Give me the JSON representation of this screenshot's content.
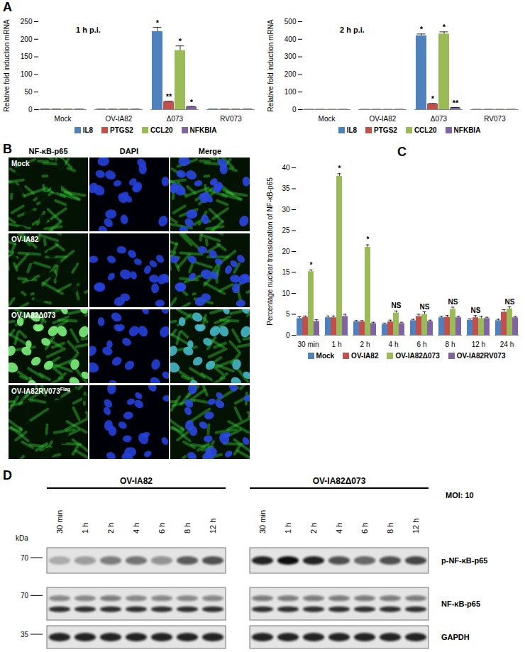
{
  "chart_data": [
    {
      "type": "bar",
      "panel": "A",
      "title": "1 h p.i.",
      "ylabel": "Relative fold induction mRNA",
      "categories": [
        "Mock",
        "OV-IA82",
        "Δ073",
        "RV073"
      ],
      "series": [
        {
          "name": "IL8",
          "color": "#4f81bd",
          "values": [
            1,
            1,
            222,
            1
          ],
          "errors": [
            0.2,
            0.2,
            12,
            0.2
          ],
          "significance": [
            null,
            null,
            "*",
            null
          ]
        },
        {
          "name": "PTGS2",
          "color": "#c0504d",
          "values": [
            1,
            1,
            22,
            1
          ],
          "errors": [
            0.2,
            0.2,
            2,
            0.2
          ],
          "significance": [
            null,
            null,
            "**",
            null
          ]
        },
        {
          "name": "CCL20",
          "color": "#9bbb59",
          "values": [
            1,
            1,
            168,
            1
          ],
          "errors": [
            0.2,
            0.2,
            13,
            0.2
          ],
          "significance": [
            null,
            null,
            "*",
            null
          ]
        },
        {
          "name": "NFKBIA",
          "color": "#8064a2",
          "values": [
            1,
            1,
            8,
            1
          ],
          "errors": [
            0.2,
            0.2,
            1,
            0.2
          ],
          "significance": [
            null,
            null,
            "*",
            null
          ]
        }
      ],
      "ylim": [
        0,
        250
      ],
      "yticks": [
        0,
        50,
        100,
        150,
        200,
        250
      ],
      "grid": false,
      "legend": "bottom"
    },
    {
      "type": "bar",
      "title": "2 h p.i.",
      "ylabel": "Relative fold induction mRNA",
      "categories": [
        "Mock",
        "OV-IA82",
        "Δ073",
        "RV073"
      ],
      "series": [
        {
          "name": "IL8",
          "color": "#4f81bd",
          "values": [
            1,
            1,
            420,
            1
          ],
          "errors": [
            0.3,
            0.3,
            10,
            0.3
          ],
          "significance": [
            null,
            null,
            "*",
            null
          ]
        },
        {
          "name": "PTGS2",
          "color": "#c0504d",
          "values": [
            1,
            1,
            32,
            1
          ],
          "errors": [
            0.3,
            0.3,
            3,
            0.3
          ],
          "significance": [
            null,
            null,
            "*",
            null
          ]
        },
        {
          "name": "CCL20",
          "color": "#9bbb59",
          "values": [
            1,
            1,
            430,
            1
          ],
          "errors": [
            0.3,
            0.3,
            12,
            0.3
          ],
          "significance": [
            null,
            null,
            "*",
            null
          ]
        },
        {
          "name": "NFKBIA",
          "color": "#8064a2",
          "values": [
            1,
            1,
            10,
            1
          ],
          "errors": [
            0.3,
            0.3,
            2,
            0.3
          ],
          "significance": [
            null,
            null,
            "**",
            null
          ]
        }
      ],
      "ylim": [
        0,
        500
      ],
      "yticks": [
        0,
        100,
        200,
        300,
        400,
        500
      ],
      "grid": false,
      "legend": "bottom"
    },
    {
      "type": "bar",
      "panel": "C",
      "ylabel": "Percentage nuclear translocation of NF-κB-p65",
      "categories": [
        "30 min",
        "1 h",
        "2 h",
        "4 h",
        "6 h",
        "8 h",
        "12 h",
        "24 h"
      ],
      "series": [
        {
          "name": "Mock",
          "color": "#4f81bd",
          "values": [
            4,
            4.2,
            3.2,
            2.6,
            3.5,
            4.2,
            3.6,
            3.5
          ],
          "errors": [
            0.4,
            0.4,
            0.3,
            0.3,
            0.3,
            0.3,
            0.3,
            0.3
          ]
        },
        {
          "name": "OV-IA82",
          "color": "#c0504d",
          "values": [
            4.3,
            4.2,
            3.2,
            3.2,
            4.5,
            4.3,
            4.2,
            5.5
          ],
          "errors": [
            0.3,
            0.4,
            0.3,
            0.4,
            0.5,
            0.4,
            0.5,
            0.6
          ]
        },
        {
          "name": "OV-IA82Δ073",
          "color": "#9bbb59",
          "values": [
            15.2,
            38,
            21,
            5.3,
            5,
            6.2,
            4,
            6.3
          ],
          "errors": [
            0.4,
            0.6,
            0.6,
            0.5,
            0.6,
            0.5,
            0.5,
            0.5
          ]
        },
        {
          "name": "OV-IA82RV073",
          "color": "#8064a2",
          "values": [
            3.3,
            4.5,
            2.8,
            2.8,
            3.3,
            4.2,
            4,
            4.2
          ],
          "errors": [
            0.4,
            0.5,
            0.3,
            0.3,
            0.3,
            0.3,
            0.3,
            0.3
          ]
        }
      ],
      "annotations": [
        "*",
        "*",
        "*",
        "NS",
        "NS",
        "NS",
        "NS",
        "NS"
      ],
      "ylim": [
        0,
        40
      ],
      "yticks": [
        0,
        5,
        10,
        15,
        20,
        25,
        30,
        35,
        40
      ],
      "grid": false,
      "legend": "bottom"
    }
  ],
  "images": {
    "panel": "B",
    "columns": [
      "NF-κB-p65",
      "DAPI",
      "Merge"
    ],
    "rows": [
      {
        "text": "Mock"
      },
      {
        "text": "OV-IA82"
      },
      {
        "text": "OV-IA82Δ073"
      },
      {
        "text": "OV-IA82RV073",
        "sup": "Flag"
      }
    ]
  },
  "blot": {
    "panel": "D",
    "unit": "kDa",
    "condition": "MOI: 10",
    "groups": [
      {
        "name": "OV-IA82",
        "lanes": [
          "30 min",
          "1 h",
          "2 h",
          "4 h",
          "6 h",
          "8 h",
          "12 h"
        ]
      },
      {
        "name": "OV-IA82Δ073",
        "lanes": [
          "30 min",
          "1 h",
          "2 h",
          "4 h",
          "6 h",
          "8 h",
          "12 h"
        ]
      }
    ],
    "rows": [
      {
        "name": "p-NF-κB-p65",
        "marker": 70,
        "bands": [
          {
            "intensity": [
              [
                0.25,
                0.35,
                0.5,
                0.55,
                0.4,
                0.65,
                0.7
              ],
              [
                0.9,
                1,
                0.9,
                0.7,
                0.6,
                0.7,
                0.75
              ]
            ]
          }
        ]
      },
      {
        "name": "NF-κB-p65",
        "marker": 70,
        "bands": [
          {
            "intensity": [
              [
                0.45,
                0.45,
                0.5,
                0.45,
                0.45,
                0.45,
                0.45
              ],
              [
                0.5,
                0.5,
                0.5,
                0.5,
                0.5,
                0.5,
                0.5
              ]
            ]
          },
          {
            "intensity": [
              [
                0.85,
                0.85,
                0.85,
                0.85,
                0.85,
                0.85,
                0.85
              ],
              [
                0.85,
                0.85,
                0.85,
                0.85,
                0.85,
                0.85,
                0.85
              ]
            ]
          }
        ]
      },
      {
        "name": "GAPDH",
        "marker": 35,
        "bands": [
          {
            "intensity": [
              [
                0.9,
                0.9,
                0.9,
                0.9,
                0.9,
                0.9,
                0.9
              ],
              [
                0.9,
                0.9,
                0.9,
                0.9,
                0.9,
                0.9,
                0.9
              ]
            ]
          }
        ]
      }
    ]
  }
}
